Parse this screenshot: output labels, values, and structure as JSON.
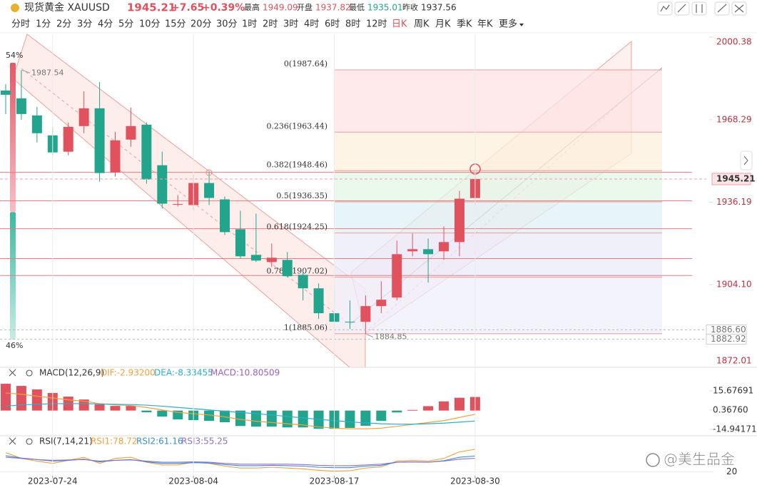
{
  "header": {
    "symbol": "现货黄金 XAUUSD",
    "price": "1945.21",
    "change": "+7.65",
    "change_pct": "+0.39%",
    "high_label": "最高",
    "high": "1949.09",
    "open_label": "开盘",
    "open": "1937.82",
    "low_label": "最低",
    "low": "1935.01",
    "prev_label": "昨收",
    "prev": "1937.56"
  },
  "timeframes": [
    "分时",
    "1分",
    "2分",
    "3分",
    "4分",
    "5分",
    "10分",
    "15分",
    "20分",
    "30分",
    "1时",
    "2时",
    "3时",
    "4时",
    "6时",
    "8时",
    "12时",
    "日K",
    "周K",
    "月K",
    "季K",
    "年K",
    "更多"
  ],
  "active_timeframe": 17,
  "watermark": "@美生品金",
  "sentiment": {
    "values": [
      54,
      46
    ],
    "value_labels": [
      "54%",
      "46%"
    ],
    "colors": [
      "#e05a66",
      "#3cb8a0"
    ]
  },
  "chart_data": [
    {
      "type": "candlestick",
      "categories": [
        null,
        null,
        null,
        "2023-07-24",
        null,
        null,
        null,
        null,
        null,
        null,
        null,
        null,
        "2023-08-04",
        null,
        null,
        null,
        null,
        null,
        null,
        null,
        null,
        "2023-08-17",
        null,
        null,
        null,
        null,
        null,
        null,
        null,
        null,
        "2023-08-30"
      ],
      "open": [
        1979.62,
        1976.58,
        1969.94,
        1962.19,
        1955.83,
        1965.79,
        1972.7,
        1947.81,
        1960.53,
        1966.34,
        1950.57,
        1935.36,
        1935.08,
        1943.66,
        1937.29,
        1925.68,
        1915.72,
        1912.95,
        1913.78,
        1907.97,
        1902.72,
        1893.03,
        1889.71,
        1889.71,
        1895.8,
        1899.12,
        1917.1,
        1917.93,
        1917.1,
        1920.7,
        1937.82
      ],
      "high": [
        1982.11,
        1987.54,
        1973.26,
        1965.51,
        1967.17,
        1979.34,
        1982.94,
        1963.57,
        1972.98,
        1967.17,
        1955.83,
        1938.95,
        1946.98,
        1947.81,
        1938.4,
        1932.87,
        1931.76,
        1920.14,
        1916.82,
        1909.63,
        1904.65,
        1904.1,
        1898.01,
        1899.95,
        1905.48,
        1921.25,
        1924.02,
        1922.08,
        1926.78,
        1940.61,
        1949.09
      ],
      "low": [
        1970.49,
        1968.28,
        1959.42,
        1954.44,
        1954.44,
        1963.02,
        1944.21,
        1946.15,
        1957.76,
        1943.38,
        1933.7,
        1934.53,
        1933.14,
        1935.08,
        1923.46,
        1914.33,
        1912.95,
        1911.01,
        1906.86,
        1898.01,
        1890.82,
        1885.06,
        1886.95,
        1884.85,
        1893.03,
        1898.01,
        1915.16,
        1904.93,
        1913.78,
        1915.16,
        1935.01
      ],
      "close": [
        1977.96,
        1970.49,
        1963.02,
        1955.55,
        1965.51,
        1972.7,
        1947.53,
        1960.25,
        1965.79,
        1945.04,
        1935.63,
        1935.5,
        1943.66,
        1937.85,
        1924.57,
        1915.16,
        1913.5,
        1914.61,
        1907.42,
        1902.72,
        1893.03,
        1889.71,
        1889.44,
        1895.8,
        1898.29,
        1915.99,
        1917.93,
        1915.99,
        1920.7,
        1937.56,
        1945.21
      ],
      "up_color": "#e0525e",
      "down_color": "#22a58c",
      "ylim": [
        1872.0,
        2001.5
      ],
      "yticks": [
        2000.38,
        1968.29,
        1936.19,
        {
          "value": 1904.1,
          "label": "1904.10"
        },
        1872.01
      ],
      "current_price": 1945.21,
      "price_markers": [
        {
          "value": 1886.6,
          "label": "1886.60"
        },
        1882.92
      ],
      "horizontal_lines": [
        1947.8,
        1936.7,
        1925.9,
        1914.3,
        1907.7
      ],
      "fib_levels": [
        {
          "value": 1987.64,
          "label": "0(1987.64)"
        },
        {
          "value": 1963.44,
          "label": "0.236(1963.44)"
        },
        {
          "value": 1948.46,
          "label": "0.382(1948.46)"
        },
        {
          "value": 1936.35,
          "label": "0.5(1936.35)"
        },
        {
          "value": 1924.25,
          "label": "0.618(1924.25)"
        },
        {
          "value": 1907.02,
          "label": "0.786(1907.02)"
        },
        {
          "value": 1885.06,
          "label": "1(1885.06)"
        }
      ],
      "fib_zone_colors": [
        "#fde3e3",
        "#fdf0dc",
        "#e4f5e6",
        "#dff2f6",
        "#ebebfa",
        "#efeffb"
      ]
    },
    {
      "type": "macd",
      "title": "MACD(12,26,9)",
      "histogram": {
        "label": "MACD:10.80509",
        "color": "#9a5fc0",
        "up_color": "#e0525e",
        "down_color": "#22a58c",
        "values": [
          21.3,
          19.6,
          16.8,
          14.0,
          11.1,
          8.8,
          4.9,
          3.7,
          3.7,
          -1.4,
          -4.8,
          -7.0,
          -7.6,
          -8.2,
          -9.3,
          -12.3,
          -12.8,
          -12.8,
          -13.4,
          -13.4,
          -14.5,
          -14.5,
          -13.8,
          -12.1,
          -8.2,
          -1.5,
          0.5,
          3.5,
          7.3,
          10.2,
          10.80509
        ]
      },
      "series": [
        {
          "label": "DIF:-2.93200",
          "color": "#f0a040",
          "values": [
            14,
            13,
            11.5,
            10,
            8.5,
            7.5,
            5.5,
            4.5,
            4,
            2.5,
            0.5,
            -1.5,
            -2.5,
            -3.5,
            -5,
            -7,
            -8.5,
            -9.5,
            -10.5,
            -11.5,
            -13,
            -14,
            -14.5,
            -14.5,
            -14,
            -12.5,
            -11,
            -9.5,
            -8,
            -5.5,
            -2.932
          ]
        },
        {
          "label": "DEA:-8.33455",
          "color": "#2aaecb",
          "values": [
            3.5,
            4.5,
            5,
            5.5,
            5.5,
            5.5,
            5.3,
            5,
            4.8,
            4.3,
            3.5,
            2.5,
            1.5,
            0.5,
            -0.5,
            -1.5,
            -2.5,
            -3.5,
            -4.7,
            -5.8,
            -7,
            -8,
            -9,
            -9.8,
            -10.5,
            -10.8,
            -10.8,
            -10.5,
            -10,
            -9.2,
            -8.33455
          ]
        }
      ],
      "ylim": [
        -19.5,
        34.4
      ],
      "yticks": [
        15.67691,
        {
          "value": 0.3676,
          "label": "0.36760"
        },
        -14.94171
      ]
    },
    {
      "type": "rsi",
      "title": "RSI(7,14,21)",
      "series": [
        {
          "label": "RSI1:78.72",
          "color": "#f0a040",
          "values": [
            70,
            55,
            48,
            42,
            50,
            58,
            42,
            55,
            58,
            45,
            38,
            38,
            45,
            42,
            35,
            30,
            30,
            32,
            30,
            28,
            24,
            22,
            23,
            30,
            33,
            48,
            50,
            48,
            55,
            72,
            78.72
          ]
        },
        {
          "label": "RSI2:61.16",
          "color": "#3a8fd0",
          "values": [
            62,
            56,
            52,
            48,
            50,
            53,
            46,
            50,
            52,
            46,
            42,
            42,
            44,
            43,
            39,
            36,
            36,
            37,
            36,
            35,
            32,
            31,
            31,
            35,
            37,
            45,
            46,
            45,
            49,
            58,
            61.16
          ]
        },
        {
          "label": "RSI3:55.25",
          "color": "#9070c8",
          "values": [
            58,
            55,
            52,
            50,
            51,
            52,
            48,
            50,
            51,
            48,
            45,
            45,
            46,
            45,
            42,
            40,
            40,
            40,
            40,
            39,
            37,
            36,
            36,
            38,
            40,
            45,
            46,
            45,
            48,
            53,
            55.25
          ]
        }
      ],
      "ylim": [
        10,
        110
      ],
      "yticks": [
        20
      ]
    }
  ]
}
